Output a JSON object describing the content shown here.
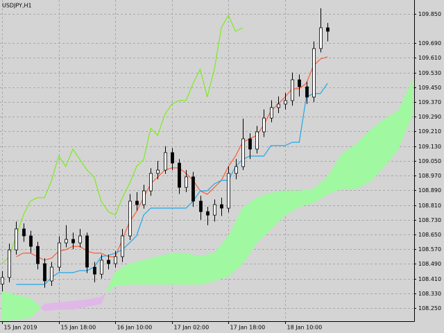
{
  "chart_data": {
    "type": "candlestick",
    "title": "USDJPY,H1",
    "x": [
      0,
      2,
      4,
      6,
      8,
      10,
      12,
      14,
      16,
      18,
      20,
      22,
      24,
      26,
      28,
      30,
      32,
      34,
      36,
      38,
      40,
      42,
      44,
      46,
      48,
      50,
      52,
      54,
      56,
      58,
      60,
      62,
      64,
      66,
      68,
      70,
      72,
      74,
      76,
      78,
      80,
      82,
      84,
      86,
      88,
      90,
      92
    ],
    "open": [
      108.38,
      108.416,
      108.566,
      108.68,
      108.642,
      108.585,
      108.491,
      108.397,
      108.472,
      108.604,
      108.623,
      108.604,
      108.642,
      108.472,
      108.434,
      108.51,
      108.491,
      108.529,
      108.642,
      108.831,
      108.812,
      108.887,
      108.982,
      109.0,
      109.095,
      109.038,
      108.906,
      108.963,
      108.831,
      108.774,
      108.755,
      108.812,
      108.793,
      108.982,
      109.019,
      109.17,
      109.114,
      109.208,
      109.283,
      109.34,
      109.359,
      109.378,
      109.491,
      109.453,
      109.397,
      109.661,
      109.774
    ],
    "high": [
      108.45,
      108.6,
      108.72,
      108.71,
      108.67,
      108.61,
      108.52,
      108.5,
      108.64,
      108.7,
      108.66,
      108.68,
      108.66,
      108.5,
      108.54,
      108.54,
      108.56,
      108.68,
      108.87,
      108.88,
      108.92,
      109.01,
      109.05,
      109.13,
      109.12,
      109.06,
      109.0,
      108.99,
      108.86,
      108.8,
      108.84,
      108.85,
      109.02,
      109.06,
      109.28,
      109.2,
      109.24,
      109.33,
      109.38,
      109.4,
      109.42,
      109.53,
      109.52,
      109.48,
      109.7,
      109.88,
      109.8
    ],
    "low": [
      108.34,
      108.39,
      108.54,
      108.61,
      108.55,
      108.46,
      108.36,
      108.37,
      108.45,
      108.58,
      108.57,
      108.58,
      108.44,
      108.39,
      108.41,
      108.46,
      108.47,
      108.5,
      108.62,
      108.78,
      108.79,
      108.86,
      108.95,
      108.98,
      109.0,
      108.87,
      108.88,
      108.8,
      108.73,
      108.7,
      108.72,
      108.75,
      108.77,
      108.95,
      109.0,
      109.06,
      109.09,
      109.18,
      109.26,
      109.31,
      109.33,
      109.35,
      109.4,
      109.36,
      109.37,
      109.64,
      109.7
    ],
    "close": [
      108.416,
      108.566,
      108.68,
      108.642,
      108.585,
      108.491,
      108.397,
      108.472,
      108.604,
      108.623,
      108.604,
      108.642,
      108.472,
      108.434,
      108.51,
      108.491,
      108.529,
      108.642,
      108.831,
      108.812,
      108.887,
      108.982,
      109.0,
      109.095,
      109.038,
      108.906,
      108.963,
      108.831,
      108.774,
      108.755,
      108.812,
      108.793,
      108.982,
      109.019,
      109.17,
      109.114,
      109.208,
      109.283,
      109.34,
      109.359,
      109.378,
      109.491,
      109.453,
      109.397,
      109.661,
      109.774,
      109.755
    ],
    "bull_color": "#ffffff",
    "bear_color": "#000000",
    "lines": [
      {
        "color": "#ff5a36",
        "values": [
          null,
          null,
          108.529,
          108.548,
          108.548,
          108.529,
          108.51,
          108.521,
          108.559,
          108.567,
          108.585,
          108.585,
          108.559,
          108.548,
          108.548,
          108.529,
          108.529,
          108.623,
          108.717,
          108.774,
          108.85,
          108.925,
          108.963,
          109.0,
          109.012,
          109.012,
          108.982,
          108.944,
          108.887,
          108.868,
          108.906,
          108.944,
          109.019,
          109.076,
          109.151,
          109.17,
          109.189,
          109.246,
          109.321,
          109.359,
          109.397,
          109.442,
          109.442,
          109.472,
          109.567,
          109.604,
          109.616
        ]
      },
      {
        "color": "#1fa8e8",
        "values": [
          null,
          null,
          108.378,
          108.378,
          108.378,
          108.378,
          108.378,
          108.416,
          108.442,
          108.442,
          108.442,
          108.453,
          108.453,
          108.472,
          108.529,
          108.536,
          108.548,
          108.567,
          108.604,
          108.642,
          108.755,
          108.793,
          108.793,
          108.793,
          108.793,
          108.793,
          108.793,
          108.831,
          108.887,
          108.887,
          108.925,
          108.944,
          108.944,
          109.019,
          109.057,
          109.076,
          109.076,
          109.076,
          109.133,
          109.133,
          109.133,
          109.151,
          109.151,
          109.397,
          109.416,
          109.416,
          109.472
        ]
      },
      {
        "color": "#7cec1c",
        "values": [
          108.491,
          108.529,
          108.642,
          108.755,
          108.831,
          108.85,
          108.85,
          108.944,
          109.076,
          109.019,
          109.114,
          109.057,
          109.0,
          108.963,
          108.831,
          108.774,
          108.755,
          108.85,
          108.925,
          109.019,
          109.057,
          109.227,
          109.189,
          109.302,
          109.359,
          109.378,
          109.378,
          109.472,
          109.548,
          109.397,
          109.548,
          109.774,
          109.842,
          109.755,
          109.774,
          null,
          null,
          null,
          null,
          null,
          null,
          null,
          null,
          null,
          null,
          null,
          null
        ]
      }
    ],
    "cloud": {
      "x": [
        0,
        4,
        8,
        12,
        16,
        20,
        24,
        28,
        32,
        36,
        40,
        44,
        48,
        52,
        56,
        60,
        64,
        68,
        72,
        76,
        80,
        84,
        88,
        92,
        96,
        100,
        104,
        108,
        112,
        116
      ],
      "span_a": [
        108.34,
        108.321,
        108.302,
        108.234,
        108.242,
        108.242,
        108.257,
        108.272,
        108.446,
        108.491,
        108.51,
        108.529,
        108.548,
        108.548,
        108.529,
        108.548,
        108.642,
        108.793,
        108.85,
        108.876,
        108.887,
        108.887,
        108.895,
        108.963,
        109.087,
        109.14,
        109.216,
        109.276,
        109.321,
        109.491
      ],
      "span_b": [
        108.178,
        108.189,
        108.197,
        108.272,
        108.28,
        108.287,
        108.295,
        108.31,
        108.37,
        108.378,
        108.378,
        108.378,
        108.378,
        108.378,
        108.378,
        108.397,
        108.423,
        108.491,
        108.604,
        108.68,
        108.755,
        108.8,
        108.823,
        108.868,
        108.899,
        108.899,
        108.936,
        109.019,
        109.114,
        109.302
      ],
      "bull_color": "#a0f8a0",
      "bear_color": "#e0b8e8"
    },
    "xlim": [
      -0.6,
      116.5
    ],
    "xticks": [
      {
        "value": 0,
        "label": "15 Jan 2019"
      },
      {
        "value": 16,
        "label": "15 Jan 18:00"
      },
      {
        "value": 32,
        "label": "16 Jan 10:00"
      },
      {
        "value": 48,
        "label": "17 Jan 02:00"
      },
      {
        "value": 64,
        "label": "17 Jan 18:00"
      },
      {
        "value": 80,
        "label": "18 Jan 10:00"
      }
    ],
    "ylim": [
      108.178,
      109.925
    ],
    "yticks": [
      {
        "value": 108.25,
        "label": "108.250"
      },
      {
        "value": 108.33,
        "label": "108.330"
      },
      {
        "value": 108.41,
        "label": "108.410"
      },
      {
        "value": 108.49,
        "label": "108.490"
      },
      {
        "value": 108.57,
        "label": "108.570"
      },
      {
        "value": 108.65,
        "label": "108.650"
      },
      {
        "value": 108.73,
        "label": "108.730"
      },
      {
        "value": 108.81,
        "label": "108.810"
      },
      {
        "value": 108.89,
        "label": "108.890"
      },
      {
        "value": 108.97,
        "label": "108.970"
      },
      {
        "value": 109.05,
        "label": "109.050"
      },
      {
        "value": 109.13,
        "label": "109.130"
      },
      {
        "value": 109.21,
        "label": "109.210"
      },
      {
        "value": 109.29,
        "label": "109.290"
      },
      {
        "value": 109.37,
        "label": "109.370"
      },
      {
        "value": 109.45,
        "label": "109.450"
      },
      {
        "value": 109.53,
        "label": "109.530"
      },
      {
        "value": 109.61,
        "label": "109.610"
      },
      {
        "value": 109.69,
        "label": "109.690"
      },
      {
        "value": 109.85,
        "label": "109.850"
      }
    ],
    "grid": true
  }
}
